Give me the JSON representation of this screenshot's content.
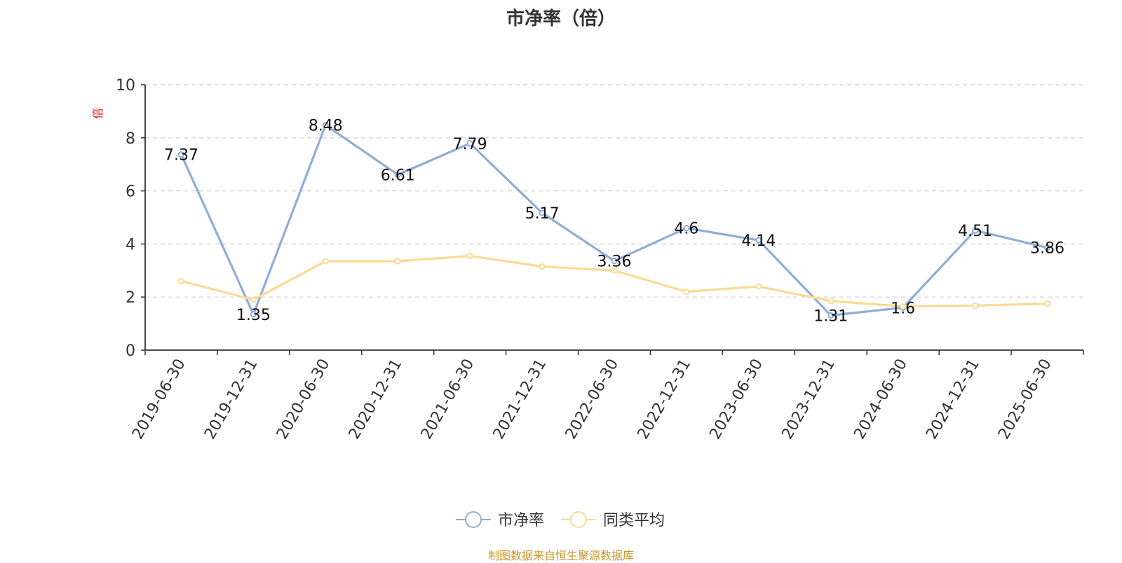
{
  "chart_data": {
    "type": "line",
    "title": "市净率（倍）",
    "ylabel": "倍",
    "ylim": [
      0,
      10
    ],
    "yticks": [
      0,
      2,
      4,
      6,
      8,
      10
    ],
    "grid": true,
    "legend_position": "bottom-center",
    "categories": [
      "2019-06-30",
      "2019-12-31",
      "2020-06-30",
      "2020-12-31",
      "2021-06-30",
      "2021-12-31",
      "2022-06-30",
      "2022-12-31",
      "2023-06-30",
      "2023-12-31",
      "2024-06-30",
      "2024-12-31",
      "2025-06-30"
    ],
    "series": [
      {
        "name": "市净率",
        "color": "#8eadd8",
        "show_labels": true,
        "values": [
          7.37,
          1.35,
          8.48,
          6.61,
          7.79,
          5.17,
          3.36,
          4.6,
          4.14,
          1.31,
          1.6,
          4.51,
          3.86
        ]
      },
      {
        "name": "同类平均",
        "color": "#fcd993",
        "show_labels": false,
        "values": [
          2.6,
          1.9,
          3.35,
          3.35,
          3.55,
          3.15,
          3.0,
          2.2,
          2.4,
          1.85,
          1.65,
          1.68,
          1.75
        ]
      }
    ]
  },
  "footer": {
    "source": "制图数据来自恒生聚源数据库",
    "source_color": "#c8962a"
  },
  "colors": {
    "axis": "#333333",
    "grid": "#cccccc",
    "ylabel": "#e02020"
  }
}
